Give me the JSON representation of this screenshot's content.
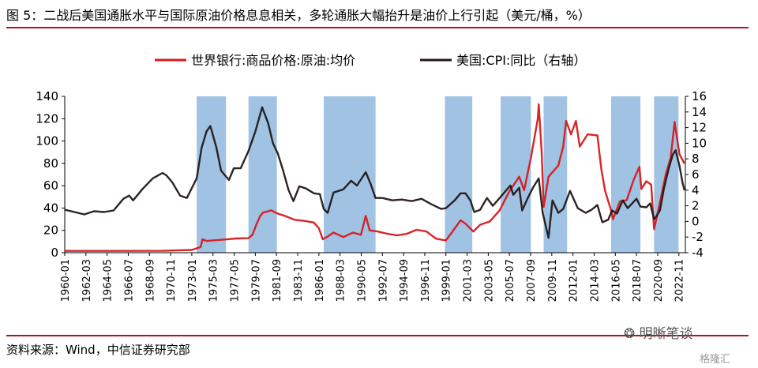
{
  "page": {
    "title": "图 5：二战后美国通胀水平与国际原油价格息息相关，多轮通胀大幅抬升是油价上行引起（美元/桶，%）",
    "source": "资料来源：Wind，中信证券研究部",
    "watermark": "明晰笔谈",
    "watermark2": "格隆汇"
  },
  "chart_data": {
    "type": "line",
    "title": "",
    "colors": {
      "oil": "#d7191c",
      "cpi": "#231815",
      "shade": "#8fb8df"
    },
    "legend_position": "top-center",
    "y_left": {
      "range": [
        0,
        140
      ],
      "ticks": [
        0,
        20,
        40,
        60,
        80,
        100,
        120,
        140
      ]
    },
    "y_right": {
      "range": [
        -4,
        16
      ],
      "ticks": [
        -4,
        -2,
        0,
        2,
        4,
        6,
        8,
        10,
        12,
        14,
        16
      ]
    },
    "x_range": [
      1960.0,
      2023.5
    ],
    "x_ticks": [
      "1960-01",
      "1962-03",
      "1964-05",
      "1966-07",
      "1968-09",
      "1970-11",
      "1973-01",
      "1975-03",
      "1977-05",
      "1979-07",
      "1981-09",
      "1983-11",
      "1986-01",
      "1988-03",
      "1990-05",
      "1992-07",
      "1994-09",
      "1996-11",
      "1999-01",
      "2001-03",
      "2003-05",
      "2005-07",
      "2007-09",
      "2009-11",
      "2012-01",
      "2014-03",
      "2016-05",
      "2018-07",
      "2020-09",
      "2022-11"
    ],
    "shaded_periods": [
      [
        1973.5,
        1976.5
      ],
      [
        1978.8,
        1981.7
      ],
      [
        1986.5,
        1991.8
      ],
      [
        1998.9,
        2001.7
      ],
      [
        2004.6,
        2007.7
      ],
      [
        2009.0,
        2011.4
      ],
      [
        2015.9,
        2018.9
      ],
      [
        2020.3,
        2022.8
      ]
    ],
    "series": [
      {
        "name": "世界银行:商品价格:原油:均价",
        "axis": "left",
        "points": [
          [
            1960,
            1.6
          ],
          [
            1970,
            1.7
          ],
          [
            1973.0,
            2.5
          ],
          [
            1973.9,
            5
          ],
          [
            1974.1,
            12
          ],
          [
            1974.5,
            10.5
          ],
          [
            1976,
            11.5
          ],
          [
            1977.5,
            12.7
          ],
          [
            1978.8,
            13.0
          ],
          [
            1979.2,
            16
          ],
          [
            1979.6,
            25
          ],
          [
            1980.0,
            33
          ],
          [
            1980.3,
            36
          ],
          [
            1980.8,
            37
          ],
          [
            1981.1,
            38
          ],
          [
            1981.8,
            35
          ],
          [
            1982.5,
            33
          ],
          [
            1983.5,
            29.5
          ],
          [
            1984.5,
            28.5
          ],
          [
            1985.5,
            27
          ],
          [
            1986.0,
            22
          ],
          [
            1986.4,
            12
          ],
          [
            1986.9,
            14.5
          ],
          [
            1987.5,
            18
          ],
          [
            1988.5,
            14
          ],
          [
            1989.5,
            18
          ],
          [
            1990.3,
            16
          ],
          [
            1990.8,
            33
          ],
          [
            1991.2,
            20
          ],
          [
            1992,
            19
          ],
          [
            1993,
            17
          ],
          [
            1994,
            15.5
          ],
          [
            1995,
            17
          ],
          [
            1996,
            20.5
          ],
          [
            1997,
            19
          ],
          [
            1998,
            12.5
          ],
          [
            1999.0,
            11
          ],
          [
            1999.6,
            18
          ],
          [
            2000.5,
            29
          ],
          [
            2001.0,
            26
          ],
          [
            2001.8,
            19
          ],
          [
            2002.5,
            25
          ],
          [
            2003.5,
            28
          ],
          [
            2004.5,
            38
          ],
          [
            2005.5,
            55
          ],
          [
            2006.5,
            68
          ],
          [
            2007.0,
            56
          ],
          [
            2007.7,
            85
          ],
          [
            2008.4,
            120
          ],
          [
            2008.5,
            133
          ],
          [
            2008.8,
            90
          ],
          [
            2009.0,
            41
          ],
          [
            2009.5,
            68
          ],
          [
            2010.5,
            78
          ],
          [
            2011.0,
            95
          ],
          [
            2011.3,
            118
          ],
          [
            2011.8,
            106
          ],
          [
            2012.3,
            118
          ],
          [
            2012.7,
            95
          ],
          [
            2013.5,
            106
          ],
          [
            2014.5,
            105
          ],
          [
            2014.9,
            75
          ],
          [
            2015.3,
            55
          ],
          [
            2015.9,
            38
          ],
          [
            2016.1,
            30
          ],
          [
            2016.8,
            46
          ],
          [
            2017.5,
            47
          ],
          [
            2018.2,
            65
          ],
          [
            2018.8,
            77
          ],
          [
            2019.0,
            57
          ],
          [
            2019.5,
            64
          ],
          [
            2020.0,
            61
          ],
          [
            2020.3,
            21
          ],
          [
            2020.8,
            41
          ],
          [
            2021.5,
            70
          ],
          [
            2022.0,
            85
          ],
          [
            2022.4,
            117
          ],
          [
            2022.6,
            105
          ],
          [
            2022.9,
            88
          ],
          [
            2023.4,
            80
          ]
        ]
      },
      {
        "name": "美国:CPI:同比（右轴）",
        "axis": "right",
        "points": [
          [
            1960.0,
            1.5
          ],
          [
            1961,
            1.2
          ],
          [
            1962,
            0.9
          ],
          [
            1963,
            1.3
          ],
          [
            1964,
            1.2
          ],
          [
            1965,
            1.4
          ],
          [
            1966,
            2.9
          ],
          [
            1966.6,
            3.3
          ],
          [
            1967,
            2.7
          ],
          [
            1968,
            4.2
          ],
          [
            1969,
            5.5
          ],
          [
            1970.0,
            6.2
          ],
          [
            1970.4,
            5.9
          ],
          [
            1971,
            5.0
          ],
          [
            1971.8,
            3.3
          ],
          [
            1972.5,
            3.0
          ],
          [
            1973.5,
            5.5
          ],
          [
            1974.0,
            9.4
          ],
          [
            1974.5,
            11.5
          ],
          [
            1974.9,
            12.2
          ],
          [
            1975.5,
            9.5
          ],
          [
            1976.0,
            6.5
          ],
          [
            1976.8,
            5.3
          ],
          [
            1977.3,
            6.8
          ],
          [
            1978.0,
            6.8
          ],
          [
            1978.8,
            9.0
          ],
          [
            1979.5,
            11.5
          ],
          [
            1980.2,
            14.6
          ],
          [
            1980.8,
            12.6
          ],
          [
            1981.3,
            10.0
          ],
          [
            1981.8,
            8.7
          ],
          [
            1982.3,
            6.7
          ],
          [
            1982.9,
            4.0
          ],
          [
            1983.4,
            2.6
          ],
          [
            1984.0,
            4.5
          ],
          [
            1984.7,
            4.2
          ],
          [
            1985.5,
            3.6
          ],
          [
            1986.1,
            3.5
          ],
          [
            1986.5,
            1.6
          ],
          [
            1986.9,
            1.1
          ],
          [
            1987.5,
            3.7
          ],
          [
            1988.5,
            4.1
          ],
          [
            1989.3,
            5.2
          ],
          [
            1989.9,
            4.6
          ],
          [
            1990.8,
            6.3
          ],
          [
            1991.3,
            4.8
          ],
          [
            1991.8,
            3.0
          ],
          [
            1992.5,
            3.0
          ],
          [
            1993.5,
            2.7
          ],
          [
            1994.5,
            2.8
          ],
          [
            1995.5,
            2.6
          ],
          [
            1996.5,
            2.9
          ],
          [
            1997.5,
            2.2
          ],
          [
            1998.5,
            1.6
          ],
          [
            1999.0,
            1.7
          ],
          [
            1999.9,
            2.7
          ],
          [
            2000.5,
            3.6
          ],
          [
            2001.0,
            3.6
          ],
          [
            2001.5,
            2.7
          ],
          [
            2001.9,
            1.2
          ],
          [
            2002.5,
            1.5
          ],
          [
            2003.2,
            3.0
          ],
          [
            2003.8,
            2.0
          ],
          [
            2004.5,
            3.0
          ],
          [
            2005.6,
            4.6
          ],
          [
            2005.9,
            3.4
          ],
          [
            2006.5,
            4.3
          ],
          [
            2006.8,
            1.4
          ],
          [
            2007.3,
            2.8
          ],
          [
            2007.9,
            4.3
          ],
          [
            2008.5,
            5.5
          ],
          [
            2008.9,
            1.1
          ],
          [
            2009.5,
            -2.1
          ],
          [
            2009.9,
            2.7
          ],
          [
            2010.5,
            1.1
          ],
          [
            2011.0,
            1.6
          ],
          [
            2011.7,
            3.9
          ],
          [
            2012.5,
            1.7
          ],
          [
            2013.3,
            1.1
          ],
          [
            2013.9,
            1.5
          ],
          [
            2014.5,
            2.1
          ],
          [
            2015.0,
            -0.1
          ],
          [
            2015.6,
            0.2
          ],
          [
            2016.0,
            1.4
          ],
          [
            2016.5,
            1.0
          ],
          [
            2017.1,
            2.7
          ],
          [
            2017.6,
            1.7
          ],
          [
            2018.5,
            2.9
          ],
          [
            2018.9,
            1.9
          ],
          [
            2019.5,
            1.8
          ],
          [
            2019.9,
            2.3
          ],
          [
            2020.3,
            0.3
          ],
          [
            2020.5,
            0.6
          ],
          [
            2020.9,
            1.4
          ],
          [
            2021.3,
            4.2
          ],
          [
            2021.8,
            6.8
          ],
          [
            2022.2,
            8.5
          ],
          [
            2022.5,
            9.1
          ],
          [
            2022.9,
            7.1
          ],
          [
            2023.2,
            5.0
          ],
          [
            2023.4,
            4.0
          ]
        ]
      }
    ]
  }
}
